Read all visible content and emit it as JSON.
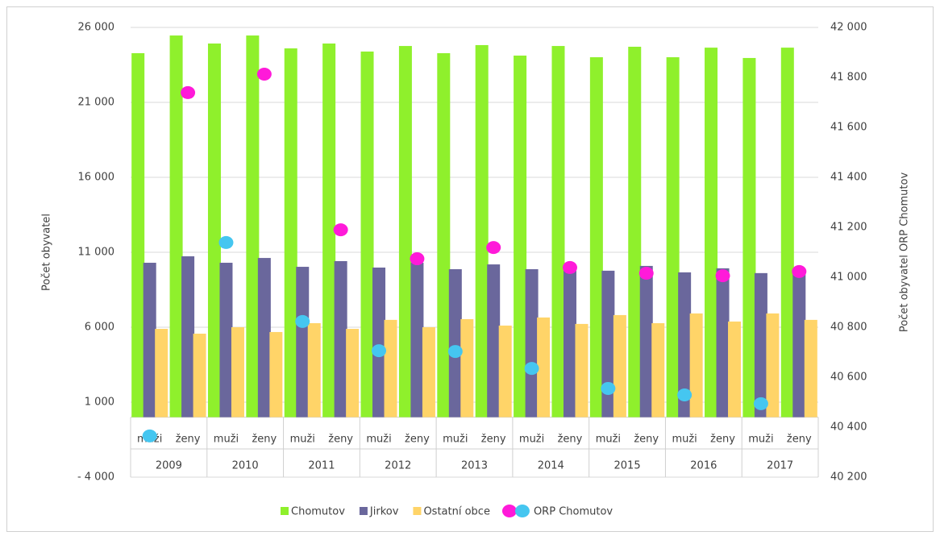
{
  "chart_data": {
    "type": "bar",
    "y_label": "Počet obyvatel",
    "y2_label": "Počet obyvatel ORP Chomutov",
    "groups": [
      "2009",
      "2010",
      "2011",
      "2012",
      "2013",
      "2014",
      "2015",
      "2016",
      "2017"
    ],
    "categories": [
      "muži",
      "ženy",
      "muži",
      "ženy",
      "muži",
      "ženy",
      "muži",
      "ženy",
      "muži",
      "ženy",
      "muži",
      "ženy",
      "muži",
      "ženy",
      "muži",
      "ženy",
      "muži",
      "ženy"
    ],
    "series": [
      {
        "name": "Chomutov",
        "color": "#8ff02c",
        "values": [
          24280,
          25460,
          24925,
          25460,
          24600,
          24925,
          24390,
          24760,
          24280,
          24820,
          24120,
          24760,
          24010,
          24710,
          24010,
          24650,
          23960,
          24650
        ]
      },
      {
        "name": "Jirkov",
        "color": "#6a679c",
        "values": [
          10300,
          10730,
          10300,
          10620,
          10030,
          10410,
          9980,
          10300,
          9870,
          10190,
          9870,
          9770,
          9770,
          10090,
          9660,
          9930,
          9610,
          9660
        ]
      },
      {
        "name": "Ostatní obce",
        "color": "#ffd468",
        "values": [
          5890,
          5570,
          6000,
          5680,
          6270,
          5890,
          6490,
          6000,
          6540,
          6110,
          6650,
          6220,
          6810,
          6270,
          6920,
          6380,
          6920,
          6490
        ]
      },
      {
        "name": "ORP Chomutov",
        "type": "scatter",
        "axis": "y2",
        "sub_colors": [
          "#45c6f0",
          "#ff1ad9"
        ],
        "values": [
          40365,
          41739,
          41139,
          41813,
          40823,
          41190,
          40706,
          41074,
          40703,
          41119,
          40635,
          41039,
          40555,
          41016,
          40529,
          41006,
          40494,
          41023
        ]
      }
    ],
    "ylim": [
      -4000,
      26000
    ],
    "yticks": [
      {
        "value": -4000,
        "label": "- 4 000"
      },
      {
        "value": 1000,
        "label": "1 000"
      },
      {
        "value": 6000,
        "label": "6 000"
      },
      {
        "value": 11000,
        "label": "11 000"
      },
      {
        "value": 16000,
        "label": "16 000"
      },
      {
        "value": 21000,
        "label": "21 000"
      },
      {
        "value": 26000,
        "label": "26 000"
      }
    ],
    "y2lim": [
      40200,
      42000
    ],
    "y2ticks": [
      {
        "value": 40200,
        "label": "40 200"
      },
      {
        "value": 40400,
        "label": "40 400"
      },
      {
        "value": 40600,
        "label": "40 600"
      },
      {
        "value": 40800,
        "label": "40 800"
      },
      {
        "value": 41000,
        "label": "41 000"
      },
      {
        "value": 41200,
        "label": "41 200"
      },
      {
        "value": 41400,
        "label": "41 400"
      },
      {
        "value": 41600,
        "label": "41 600"
      },
      {
        "value": 41800,
        "label": "41 800"
      },
      {
        "value": 42000,
        "label": "42 000"
      }
    ],
    "grid": true
  }
}
